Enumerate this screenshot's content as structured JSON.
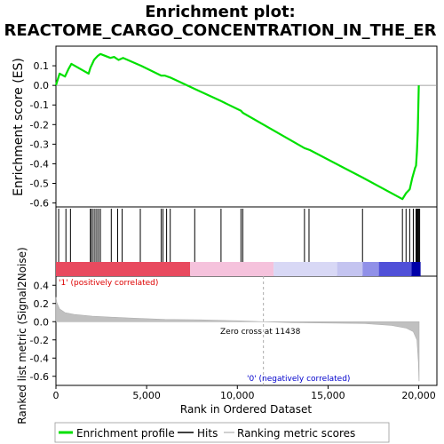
{
  "chart_data": [
    {
      "type": "line",
      "panel": "enrichment",
      "title_line1": "Enrichment plot:",
      "title_line2": "REACTOME_CARGO_CONCENTRATION_IN_THE_ER",
      "ylabel": "Enrichment score (ES)",
      "ylim": [
        -0.62,
        0.2
      ],
      "yticks": [
        "0.1",
        "0.0",
        "-0.1",
        "-0.2",
        "-0.3",
        "-0.4",
        "-0.5",
        "-0.6"
      ],
      "ytick_values": [
        0.1,
        0.0,
        -0.1,
        -0.2,
        -0.3,
        -0.4,
        -0.5,
        -0.6
      ],
      "xlim": [
        0,
        21000
      ],
      "grid": false,
      "line_color": "#00e000",
      "series": [
        {
          "values_x": [
            0,
            200,
            500,
            700,
            850,
            1800,
            1900,
            2000,
            2100,
            2200,
            2300,
            2450,
            3000,
            3200,
            3450,
            3700,
            4700,
            5800,
            6000,
            6300,
            7700,
            9100,
            10200,
            10300,
            13700,
            14000,
            16900,
            19100,
            19300,
            19500,
            19650,
            19800,
            19850,
            19900,
            19950,
            20000
          ],
          "values_y": [
            0.0,
            0.06,
            0.045,
            0.085,
            0.11,
            0.06,
            0.09,
            0.11,
            0.13,
            0.14,
            0.15,
            0.16,
            0.14,
            0.145,
            0.13,
            0.14,
            0.1,
            0.05,
            0.05,
            0.04,
            -0.02,
            -0.08,
            -0.13,
            -0.14,
            -0.32,
            -0.33,
            -0.47,
            -0.58,
            -0.55,
            -0.53,
            -0.47,
            -0.42,
            -0.41,
            -0.34,
            -0.23,
            0.0
          ]
        }
      ]
    },
    {
      "type": "hits",
      "panel": "hits",
      "hits_x": [
        150,
        550,
        800,
        1900,
        1950,
        2050,
        2150,
        2250,
        2350,
        2450,
        3050,
        3400,
        3650,
        4650,
        5800,
        5900,
        6100,
        6300,
        7650,
        9100,
        10200,
        10300,
        13700,
        13950,
        16900,
        19100,
        19300,
        19500,
        19700,
        19850,
        19900,
        19950,
        20000,
        20050
      ]
    },
    {
      "type": "area",
      "panel": "metric",
      "ylabel": "Ranked list metric (Signal2Noise)",
      "xlabel": "Rank in Ordered Dataset",
      "ylim": [
        -0.7,
        0.5
      ],
      "yticks": [
        "0.4",
        "0.2",
        "0.0",
        "-0.2",
        "-0.4",
        "-0.6"
      ],
      "ytick_values": [
        0.4,
        0.2,
        0.0,
        -0.2,
        -0.4,
        -0.6
      ],
      "xticks": [
        "0",
        "5,000",
        "10,000",
        "15,000",
        "20,000"
      ],
      "xtick_values": [
        0,
        5000,
        10000,
        15000,
        20000
      ],
      "xlim": [
        0,
        21000
      ],
      "x": [
        0,
        50,
        200,
        500,
        1000,
        2000,
        4000,
        6000,
        8000,
        10000,
        11438,
        13000,
        15000,
        17000,
        18500,
        19300,
        19700,
        19900,
        19980,
        20010,
        20020
      ],
      "values": [
        0.27,
        0.21,
        0.14,
        0.1,
        0.08,
        0.06,
        0.04,
        0.025,
        0.02,
        0.01,
        0.0,
        -0.01,
        -0.015,
        -0.02,
        -0.04,
        -0.07,
        -0.11,
        -0.2,
        -0.45,
        -0.65,
        -0.65
      ],
      "zero_cross_label": "Zero cross at 11438",
      "zero_cross_x": 11438,
      "pos_label": "'1' (positively correlated)",
      "neg_label": "'0' (negatively correlated)",
      "pos_color": "#dd0000",
      "neg_color": "#0000cc",
      "fill_color": "#c0c0c0"
    }
  ],
  "heat_bar": {
    "segments": [
      {
        "from": 0,
        "to": 7400,
        "color": "#e84a5f"
      },
      {
        "from": 7400,
        "to": 12000,
        "color": "#f5c2dc"
      },
      {
        "from": 12000,
        "to": 15500,
        "color": "#d8d8f5"
      },
      {
        "from": 15500,
        "to": 16900,
        "color": "#c4c4f0"
      },
      {
        "from": 16900,
        "to": 17800,
        "color": "#9090e8"
      },
      {
        "from": 17800,
        "to": 19600,
        "color": "#5050d8"
      },
      {
        "from": 19600,
        "to": 20100,
        "color": "#0000a8"
      }
    ]
  },
  "legend": {
    "items": [
      {
        "label": "Enrichment profile",
        "color": "#00e000",
        "kind": "thick"
      },
      {
        "label": "Hits",
        "color": "#000000",
        "kind": "thin"
      },
      {
        "label": "Ranking metric scores",
        "color": "#c0c0c0",
        "kind": "thin"
      }
    ]
  }
}
